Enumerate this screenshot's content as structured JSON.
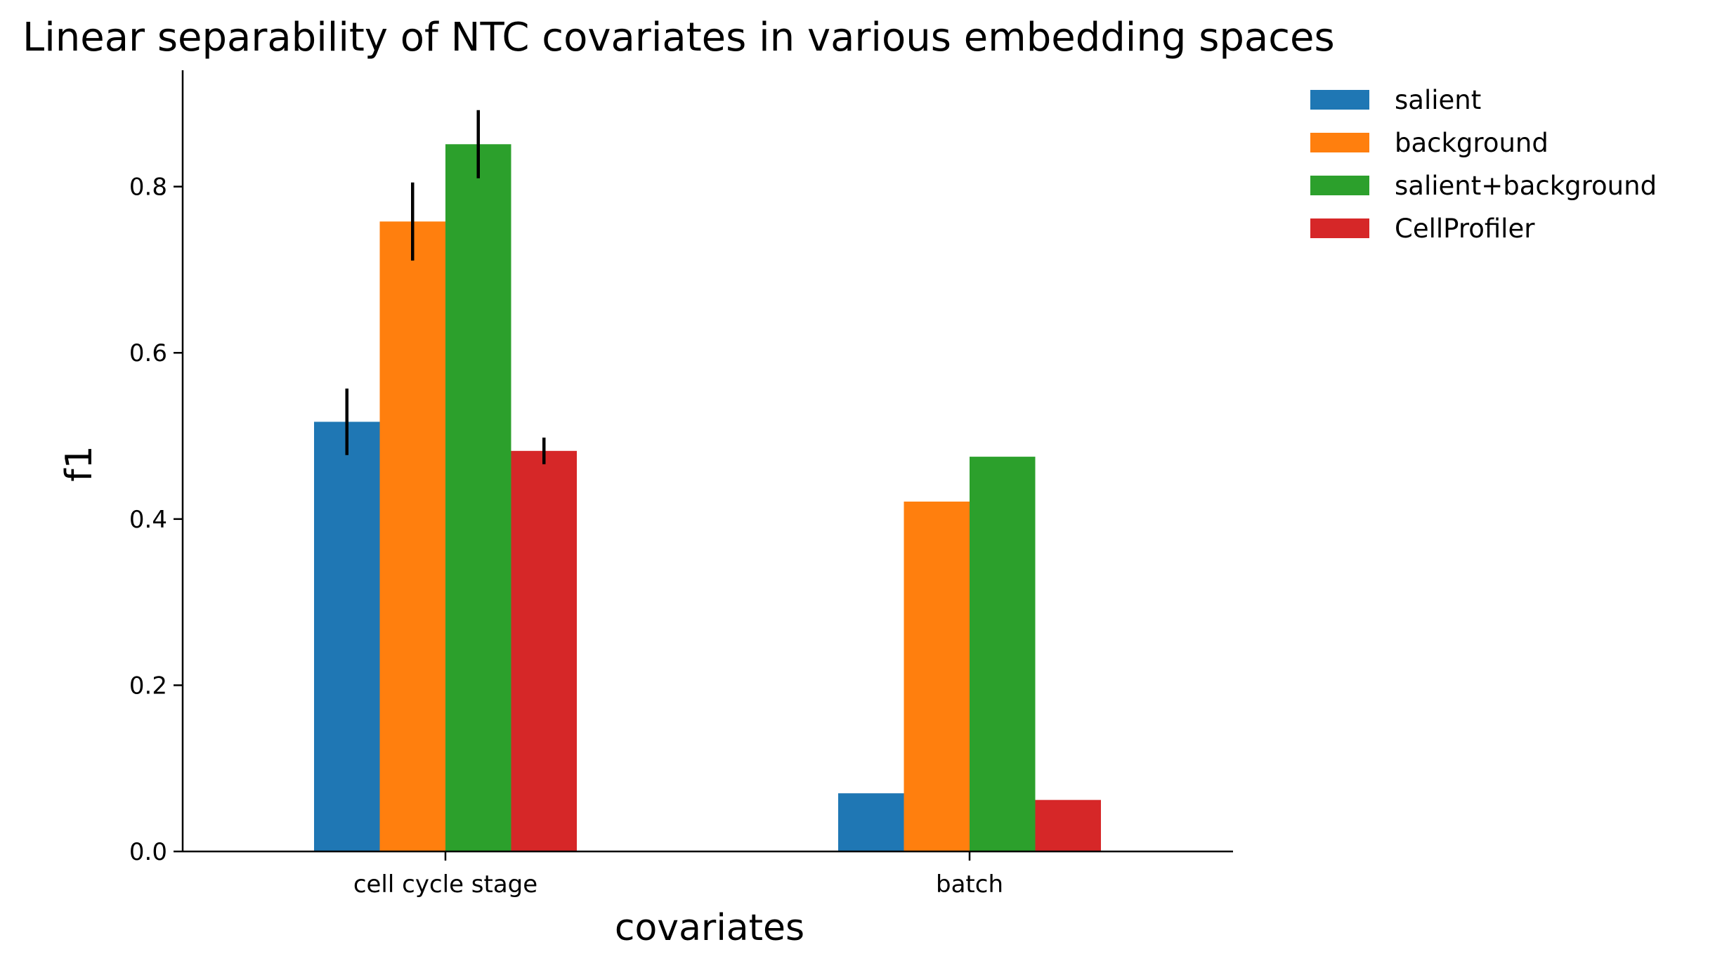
{
  "chart_data": {
    "type": "bar",
    "title": "Linear separability of NTC covariates in various embedding spaces",
    "xlabel": "covariates",
    "ylabel": "f1",
    "categories": [
      "cell cycle stage",
      "batch"
    ],
    "series": [
      {
        "name": "salient",
        "color": "#1f77b4",
        "values": [
          0.517,
          0.07
        ],
        "errors": [
          0.04,
          null
        ]
      },
      {
        "name": "background",
        "color": "#ff7f0e",
        "values": [
          0.758,
          0.421
        ],
        "errors": [
          0.047,
          null
        ]
      },
      {
        "name": "salient+background",
        "color": "#2ca02c",
        "values": [
          0.851,
          0.475
        ],
        "errors": [
          0.041,
          null
        ]
      },
      {
        "name": "CellProfiler",
        "color": "#d62728",
        "values": [
          0.482,
          0.062
        ],
        "errors": [
          0.016,
          null
        ]
      }
    ],
    "ylim": [
      0,
      0.94
    ],
    "yticks": [
      "0.0",
      "0.2",
      "0.4",
      "0.6",
      "0.8"
    ],
    "legend_position": "upper-right-outside",
    "grid": false
  }
}
